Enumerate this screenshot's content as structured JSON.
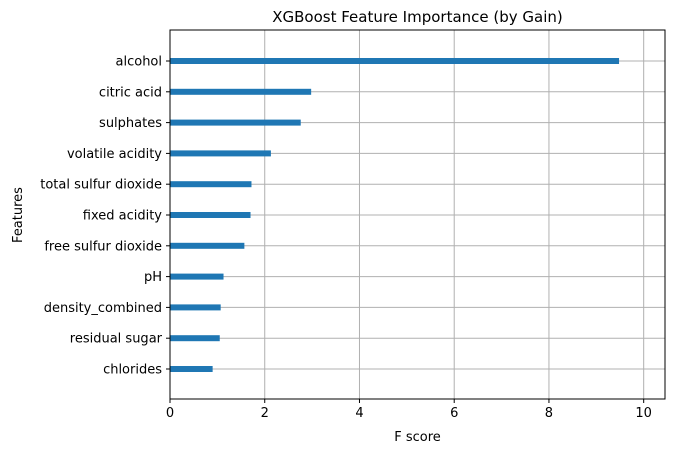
{
  "chart_data": {
    "type": "bar",
    "orientation": "horizontal",
    "title": "XGBoost Feature Importance (by Gain)",
    "xlabel": "F score",
    "ylabel": "Features",
    "categories": [
      "alcohol",
      "citric acid",
      "sulphates",
      "volatile acidity",
      "total sulfur dioxide",
      "fixed acidity",
      "free sulfur dioxide",
      "pH",
      "density_combined",
      "residual sugar",
      "chlorides"
    ],
    "values": [
      9.48,
      2.98,
      2.76,
      2.13,
      1.72,
      1.7,
      1.57,
      1.13,
      1.07,
      1.05,
      0.9
    ],
    "xlim": [
      0,
      10.45
    ],
    "xticks": [
      0,
      2,
      4,
      6,
      8,
      10
    ],
    "grid": true,
    "colors": {
      "bar": "#1f77b4",
      "grid": "#b0b0b0"
    }
  }
}
